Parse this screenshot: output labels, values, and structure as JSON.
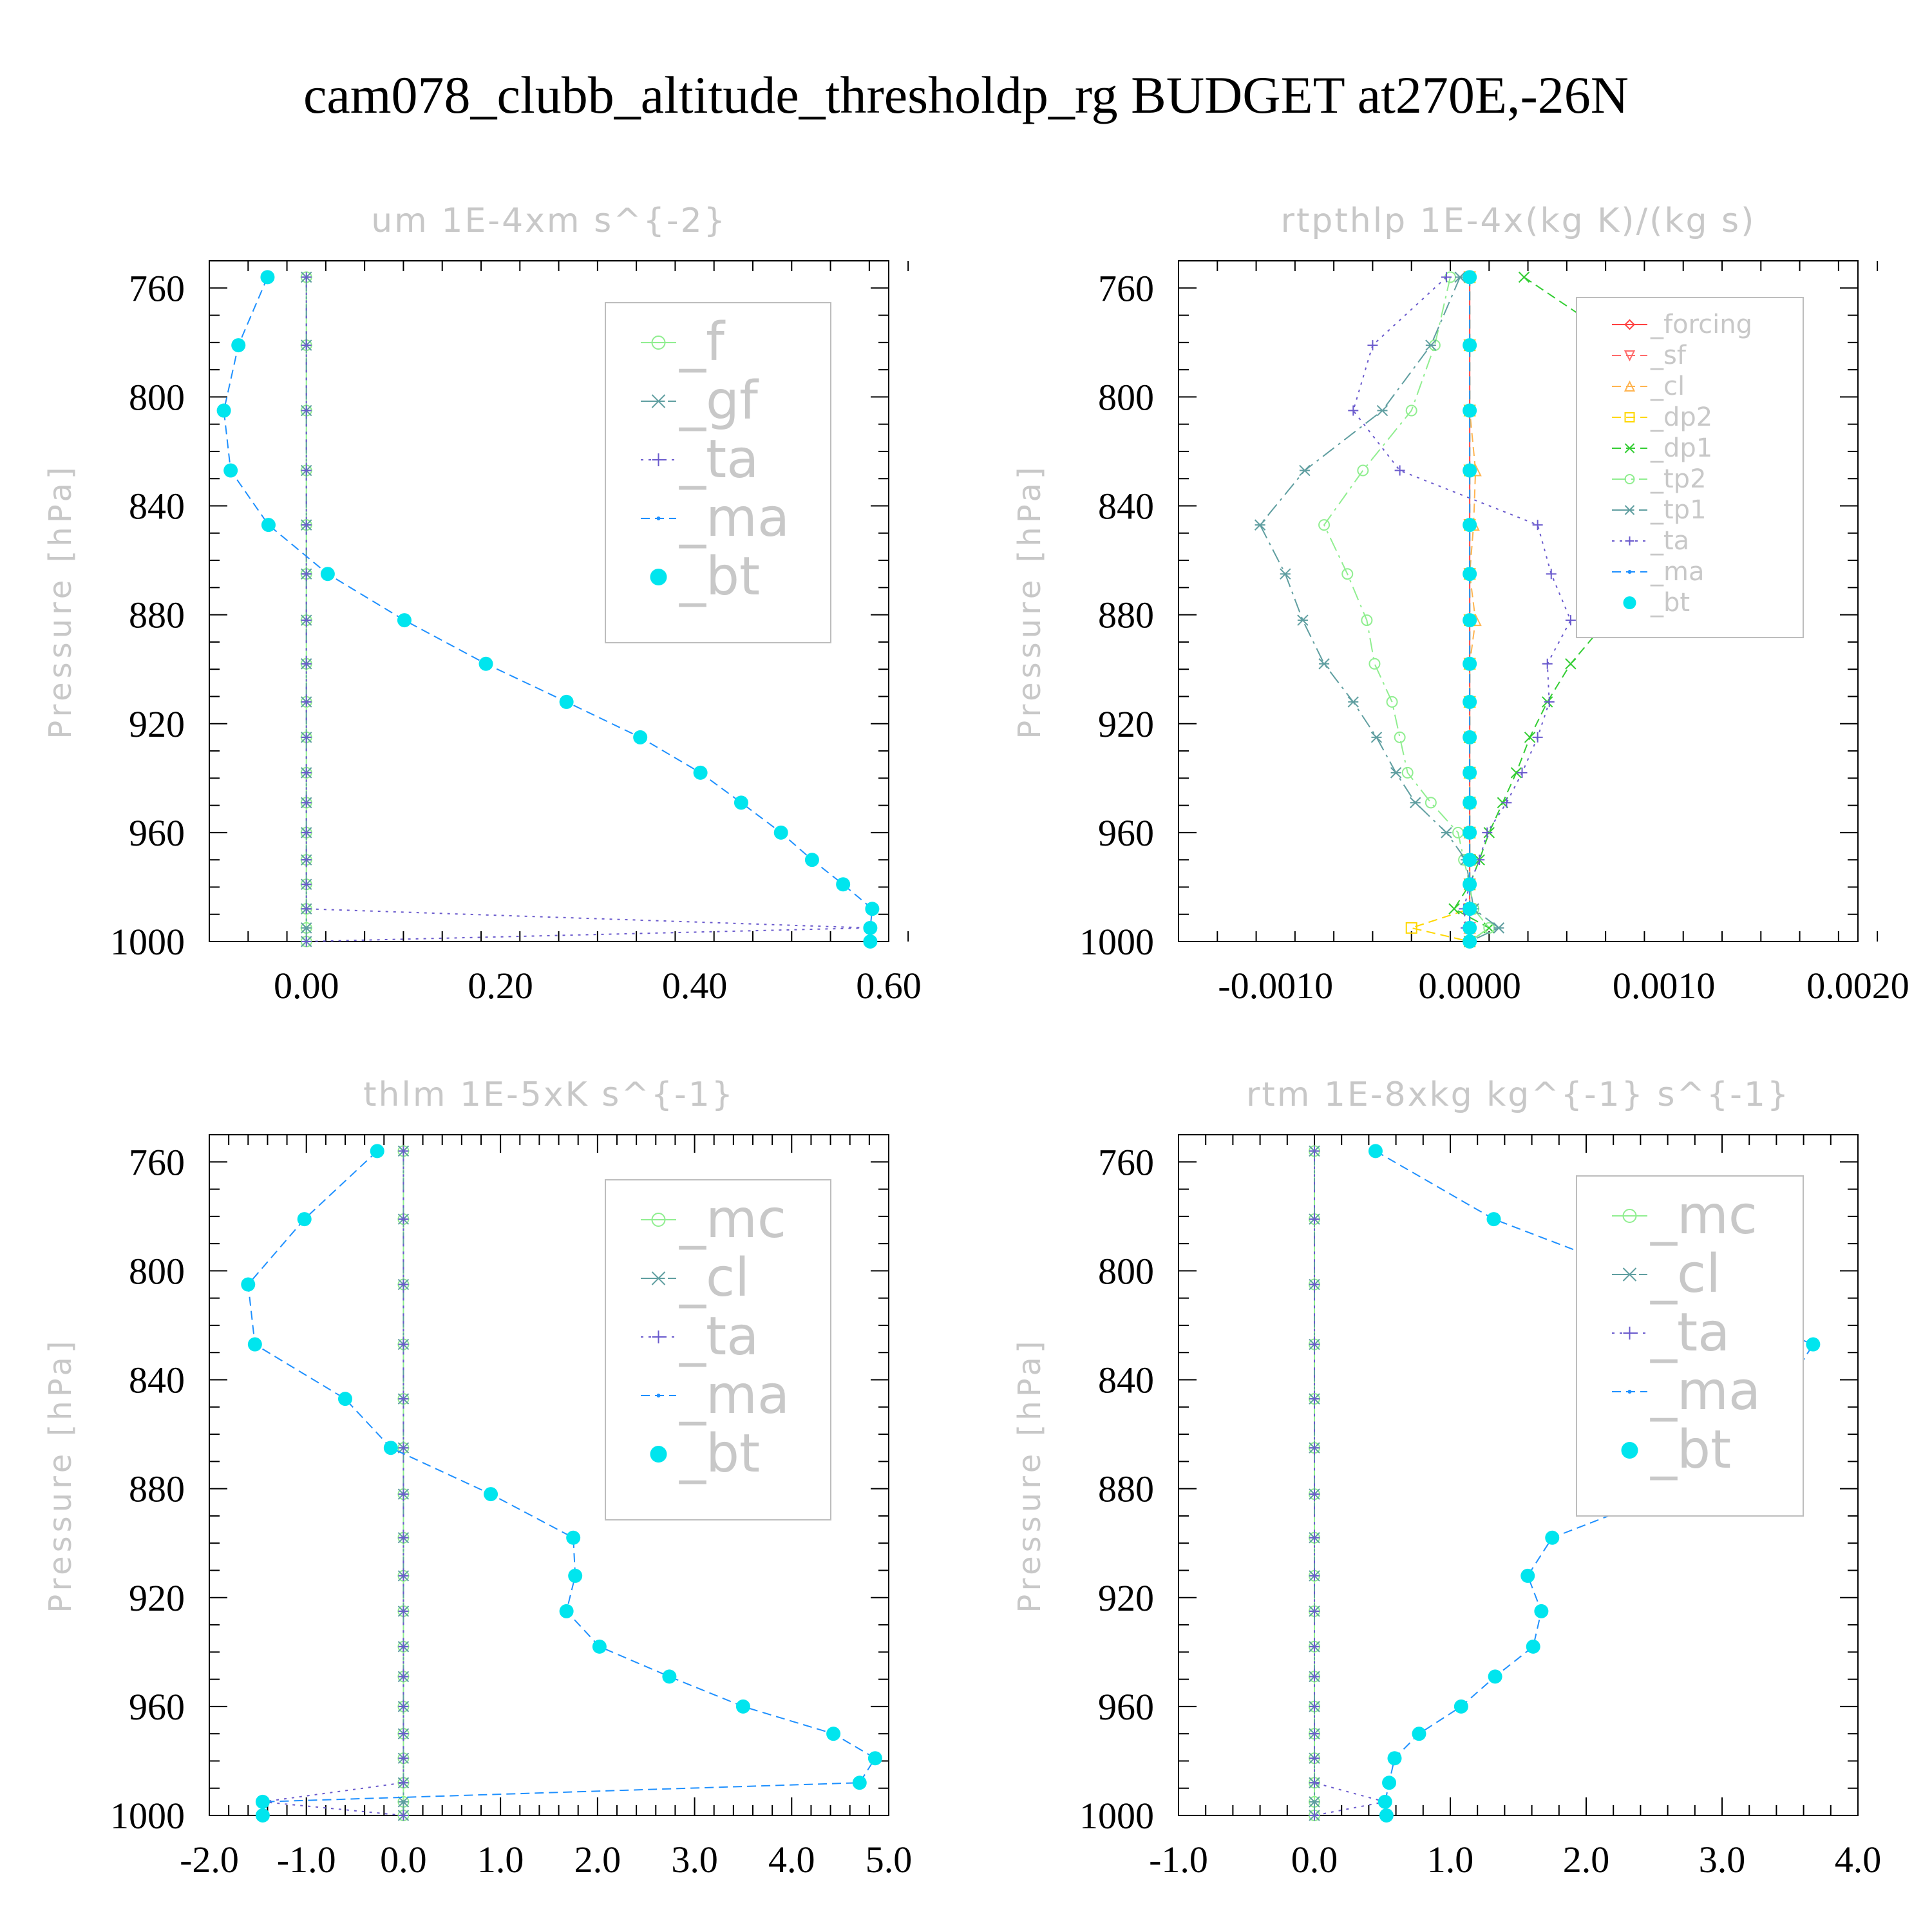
{
  "title": "cam078_clubb_altitude_thresholdp_rg  BUDGET at270E,-26N",
  "chart_data": [
    {
      "type": "line",
      "title": "um  1E-4xm s^{-2}",
      "ylabel": "Pressure [hPa]",
      "ylim": [
        1000,
        750
      ],
      "yticks": [
        760,
        800,
        840,
        880,
        920,
        960,
        1000
      ],
      "xlim": [
        -0.1,
        0.6
      ],
      "xticks": [
        0.0,
        0.2,
        0.4,
        0.6
      ],
      "xticklabels": [
        "0.00",
        "0.20",
        "0.40",
        "0.60"
      ],
      "grid": false,
      "legend": "top-right",
      "pressure": [
        756,
        781,
        805,
        827,
        847,
        865,
        882,
        898,
        912,
        925,
        938,
        949,
        960,
        970,
        979,
        988,
        995,
        1000
      ],
      "series": [
        {
          "name": "_f",
          "color": "#90ee90",
          "marker": "circle-open",
          "dash": "solid",
          "values": [
            0,
            0,
            0,
            0,
            0,
            0,
            0,
            0,
            0,
            0,
            0,
            0,
            0,
            0,
            0,
            0,
            0,
            0
          ]
        },
        {
          "name": "_gf",
          "color": "#5f9ea0",
          "marker": "asterisk",
          "dash": "dashdot",
          "values": [
            0,
            0,
            0,
            0,
            0,
            0,
            0,
            0,
            0,
            0,
            0,
            0,
            0,
            0,
            0,
            0,
            0,
            0
          ]
        },
        {
          "name": "_ta",
          "color": "#6a5acd",
          "marker": "plus",
          "dash": "dotted",
          "values": [
            0,
            0,
            0,
            0,
            0,
            0,
            0,
            0,
            0,
            0,
            0,
            0,
            0,
            0,
            0,
            0,
            0.58,
            0
          ]
        },
        {
          "name": "_ma",
          "color": "#1e90ff",
          "marker": "dot",
          "dash": "dashed",
          "values": [
            -0.04,
            -0.07,
            -0.085,
            -0.078,
            -0.039,
            0.022,
            0.101,
            0.185,
            0.268,
            0.344,
            0.406,
            0.448,
            0.489,
            0.521,
            0.553,
            0.583,
            0.581,
            0.581
          ]
        },
        {
          "name": "_bt",
          "color": "#00e5ee",
          "marker": "filled-circle",
          "dash": "none",
          "values": [
            -0.04,
            -0.07,
            -0.085,
            -0.078,
            -0.039,
            0.022,
            0.101,
            0.185,
            0.268,
            0.344,
            0.406,
            0.448,
            0.489,
            0.521,
            0.553,
            0.583,
            0.581,
            0.581
          ]
        }
      ]
    },
    {
      "type": "line",
      "title": "rtpthlp  1E-4x(kg K)/(kg s)",
      "ylabel": "Pressure [hPa]",
      "ylim": [
        1000,
        750
      ],
      "yticks": [
        760,
        800,
        840,
        880,
        920,
        960,
        1000
      ],
      "xlim": [
        -0.0015,
        0.002
      ],
      "xticks": [
        -0.001,
        0.0,
        0.001,
        0.002
      ],
      "xticklabels": [
        "-0.0010",
        "0.0000",
        "0.0010",
        "0.0020"
      ],
      "grid": false,
      "legend": "top-right",
      "pressure": [
        756,
        781,
        805,
        827,
        847,
        865,
        882,
        898,
        912,
        925,
        938,
        949,
        960,
        970,
        979,
        988,
        995,
        1000
      ],
      "series": [
        {
          "name": "_forcing",
          "color": "#ff4040",
          "marker": "diamond",
          "dash": "solid",
          "values": [
            0,
            0,
            0,
            0,
            0,
            0,
            0,
            0,
            0,
            0,
            0,
            0,
            0,
            0,
            0,
            0,
            0,
            0
          ]
        },
        {
          "name": "_sf",
          "color": "#ff6a6a",
          "marker": "triangle-down",
          "dash": "dashed",
          "values": [
            0,
            0,
            0,
            0,
            0,
            0,
            0,
            0,
            0,
            0,
            0,
            0,
            0,
            0,
            0,
            0,
            0,
            0
          ]
        },
        {
          "name": "_cl",
          "color": "#ffb450",
          "marker": "triangle",
          "dash": "dashed",
          "values": [
            0,
            0,
            0,
            3e-05,
            2e-05,
            0,
            3e-05,
            0,
            0,
            0,
            0,
            0,
            0,
            0,
            0,
            0,
            0,
            0
          ]
        },
        {
          "name": "_dp2",
          "color": "#ffd700",
          "marker": "square",
          "dash": "dashed",
          "values": [
            0,
            0,
            0,
            0,
            0,
            0,
            0,
            0,
            0,
            0,
            0,
            0,
            0,
            0,
            0,
            0,
            -0.0003,
            0
          ]
        },
        {
          "name": "_dp1",
          "color": "#32cd32",
          "marker": "cross",
          "dash": "dashed",
          "values": [
            0.00028,
            0.0008,
            0.0013,
            0.00165,
            0.00152,
            0.00105,
            0.00071,
            0.00052,
            0.0004,
            0.00031,
            0.00024,
            0.00017,
            0.0001,
            5e-05,
            0,
            -8e-05,
            0.0001,
            0
          ]
        },
        {
          "name": "_tp2",
          "color": "#90ee90",
          "marker": "circle-open",
          "dash": "dashdot",
          "values": [
            -0.0001,
            -0.00018,
            -0.0003,
            -0.00055,
            -0.00075,
            -0.00063,
            -0.00053,
            -0.00049,
            -0.0004,
            -0.00036,
            -0.00032,
            -0.0002,
            -6e-05,
            -3e-05,
            0,
            2e-05,
            0.0001,
            0
          ]
        },
        {
          "name": "_tp1",
          "color": "#5f9ea0",
          "marker": "asterisk",
          "dash": "dashdot",
          "values": [
            -5e-05,
            -0.0002,
            -0.00045,
            -0.00085,
            -0.00108,
            -0.00095,
            -0.00086,
            -0.00075,
            -0.0006,
            -0.00048,
            -0.00038,
            -0.00028,
            -0.00012,
            -2e-05,
            0,
            2e-05,
            0.00015,
            0
          ]
        },
        {
          "name": "_ta",
          "color": "#6a5acd",
          "marker": "plus",
          "dash": "dotted",
          "values": [
            -0.00012,
            -0.0005,
            -0.0006,
            -0.00036,
            0.00035,
            0.00042,
            0.00052,
            0.0004,
            0.00041,
            0.00035,
            0.00027,
            0.00019,
            9e-05,
            5e-05,
            0,
            -3e-05,
            -2e-05,
            0
          ]
        },
        {
          "name": "_ma",
          "color": "#1e90ff",
          "marker": "dot",
          "dash": "dashed",
          "values": [
            0,
            0,
            0,
            0,
            0,
            0,
            0,
            0,
            0,
            0,
            0,
            0,
            0,
            0,
            0,
            0,
            0,
            0
          ]
        },
        {
          "name": "_bt",
          "color": "#00e5ee",
          "marker": "filled-circle",
          "dash": "none",
          "values": [
            0,
            0,
            0,
            0,
            0,
            0,
            0,
            0,
            0,
            0,
            0,
            0,
            0,
            0,
            0,
            0,
            0,
            0
          ]
        }
      ]
    },
    {
      "type": "line",
      "title": "thlm  1E-5xK s^{-1}",
      "ylabel": "Pressure [hPa]",
      "ylim": [
        1000,
        750
      ],
      "yticks": [
        760,
        800,
        840,
        880,
        920,
        960,
        1000
      ],
      "xlim": [
        -2.0,
        5.0
      ],
      "xticks": [
        -2.0,
        -1.0,
        0.0,
        1.0,
        2.0,
        3.0,
        4.0,
        5.0
      ],
      "xticklabels": [
        "-2.0",
        "-1.0",
        "0.0",
        "1.0",
        "2.0",
        "3.0",
        "4.0",
        "5.0"
      ],
      "grid": false,
      "legend": "top-right",
      "pressure": [
        756,
        781,
        805,
        827,
        847,
        865,
        882,
        898,
        912,
        925,
        938,
        949,
        960,
        970,
        979,
        988,
        995,
        1000
      ],
      "series": [
        {
          "name": "_mc",
          "color": "#90ee90",
          "marker": "circle-open",
          "dash": "solid",
          "values": [
            0,
            0,
            0,
            0,
            0,
            0,
            0,
            0,
            0,
            0,
            0,
            0,
            0,
            0,
            0,
            0,
            0,
            0
          ]
        },
        {
          "name": "_cl",
          "color": "#5f9ea0",
          "marker": "asterisk",
          "dash": "dashdot",
          "values": [
            0,
            0,
            0,
            0,
            0,
            0,
            0,
            0,
            0,
            0,
            0,
            0,
            0,
            0,
            0,
            0,
            0,
            0
          ]
        },
        {
          "name": "_ta",
          "color": "#6a5acd",
          "marker": "plus",
          "dash": "dotted",
          "values": [
            0,
            0,
            0,
            0,
            0,
            0,
            0,
            0,
            0,
            0,
            0,
            0,
            0,
            0,
            0,
            0,
            -1.45,
            0
          ]
        },
        {
          "name": "_ma",
          "color": "#1e90ff",
          "marker": "dot",
          "dash": "dashed",
          "values": [
            -0.27,
            -1.02,
            -1.6,
            -1.53,
            -0.6,
            -0.13,
            0.9,
            1.75,
            1.77,
            1.68,
            2.02,
            2.74,
            3.5,
            4.43,
            4.86,
            4.7,
            -1.45,
            -1.45
          ]
        },
        {
          "name": "_bt",
          "color": "#00e5ee",
          "marker": "filled-circle",
          "dash": "none",
          "values": [
            -0.27,
            -1.02,
            -1.6,
            -1.53,
            -0.6,
            -0.13,
            0.9,
            1.75,
            1.77,
            1.68,
            2.02,
            2.74,
            3.5,
            4.43,
            4.86,
            4.7,
            -1.45,
            -1.45
          ]
        }
      ]
    },
    {
      "type": "line",
      "title": "rtm  1E-8xkg kg^{-1} s^{-1}",
      "ylabel": "Pressure [hPa]",
      "ylim": [
        1000,
        750
      ],
      "yticks": [
        760,
        800,
        840,
        880,
        920,
        960,
        1000
      ],
      "xlim": [
        -1.0,
        4.0
      ],
      "xticks": [
        -1.0,
        0.0,
        1.0,
        2.0,
        3.0,
        4.0
      ],
      "xticklabels": [
        "-1.0",
        "0.0",
        "1.0",
        "2.0",
        "3.0",
        "4.0"
      ],
      "grid": false,
      "legend": "top-right",
      "pressure": [
        756,
        781,
        805,
        827,
        847,
        865,
        882,
        898,
        912,
        925,
        938,
        949,
        960,
        970,
        979,
        988,
        995,
        1000
      ],
      "series": [
        {
          "name": "_mc",
          "color": "#90ee90",
          "marker": "circle-open",
          "dash": "solid",
          "values": [
            0,
            0,
            0,
            0,
            0,
            0,
            0,
            0,
            0,
            0,
            0,
            0,
            0,
            0,
            0,
            0,
            0,
            0
          ]
        },
        {
          "name": "_cl",
          "color": "#5f9ea0",
          "marker": "asterisk",
          "dash": "dashdot",
          "values": [
            0,
            0,
            0,
            0,
            0,
            0,
            0,
            0,
            0,
            0,
            0,
            0,
            0,
            0,
            0,
            0,
            0,
            0
          ]
        },
        {
          "name": "_ta",
          "color": "#6a5acd",
          "marker": "plus",
          "dash": "dotted",
          "values": [
            0,
            0,
            0,
            0,
            0,
            0,
            0,
            0,
            0,
            0,
            0,
            0,
            0,
            0,
            0,
            0,
            0.52,
            0
          ]
        },
        {
          "name": "_ma",
          "color": "#1e90ff",
          "marker": "dot",
          "dash": "dashed",
          "values": [
            0.45,
            1.32,
            2.58,
            3.67,
            3.42,
            3.35,
            2.58,
            1.75,
            1.57,
            1.67,
            1.61,
            1.33,
            1.08,
            0.77,
            0.59,
            0.55,
            0.52,
            0.53
          ]
        },
        {
          "name": "_bt",
          "color": "#00e5ee",
          "marker": "filled-circle",
          "dash": "none",
          "values": [
            0.45,
            1.32,
            2.58,
            3.67,
            3.42,
            3.35,
            2.58,
            1.75,
            1.57,
            1.67,
            1.61,
            1.33,
            1.08,
            0.77,
            0.59,
            0.55,
            0.52,
            0.53
          ]
        }
      ]
    }
  ]
}
